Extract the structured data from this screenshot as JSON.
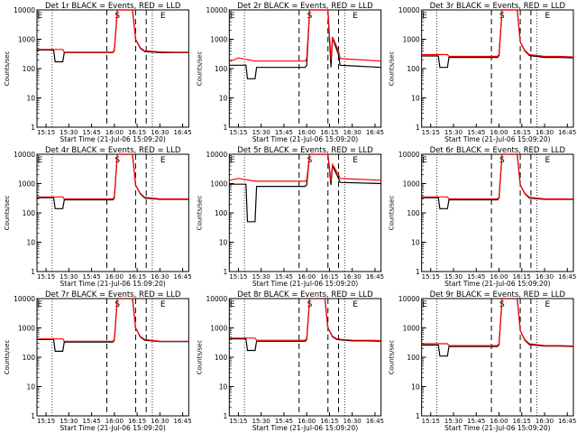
{
  "chart_data": [
    {
      "type": "line",
      "title": "Det 1r BLACK = Events, RED = LLD",
      "xlabel": "Start Time (21-Jul-06 15:09:20)",
      "ylabel": "Counts/sec",
      "y_scale": "log",
      "ylim": [
        1,
        10000
      ],
      "y_ticks": [
        "1",
        "10",
        "100",
        "1000",
        "10000"
      ],
      "x_ticks": [
        "15:15",
        "15:30",
        "15:45",
        "16:00",
        "16:15",
        "16:30",
        "16:45"
      ],
      "grid": false,
      "vline_labels": [
        "E",
        "S",
        "E"
      ],
      "series": [
        {
          "name": "BLACK",
          "color": "#000000",
          "x": [
            "15:09",
            "15:20",
            "15:21",
            "15:26",
            "15:27",
            "15:59",
            "16:00",
            "16:02",
            "16:12",
            "16:14",
            "16:17",
            "16:20",
            "16:30",
            "16:40",
            "16:49"
          ],
          "values": [
            430,
            430,
            170,
            170,
            350,
            350,
            400,
            10000,
            10000,
            1000,
            500,
            380,
            350,
            350,
            350
          ]
        },
        {
          "name": "RED",
          "color": "#ff0000",
          "x": [
            "15:09",
            "15:20",
            "15:26",
            "15:27",
            "15:59",
            "16:00",
            "16:02",
            "16:12",
            "16:14",
            "16:17",
            "16:20",
            "16:30",
            "16:40",
            "16:49"
          ],
          "values": [
            450,
            450,
            450,
            360,
            360,
            420,
            10000,
            10000,
            1000,
            520,
            400,
            370,
            360,
            360
          ]
        }
      ]
    },
    {
      "type": "line",
      "title": "Det 2r BLACK = Events, RED = LLD",
      "xlabel": "Start Time (21-Jul-06 15:09:20)",
      "ylabel": "Counts/sec",
      "y_scale": "log",
      "ylim": [
        1,
        10000
      ],
      "y_ticks": [
        "1",
        "10",
        "100",
        "1000",
        "10000"
      ],
      "x_ticks": [
        "15:15",
        "15:30",
        "15:45",
        "16:00",
        "16:15",
        "16:30",
        "16:45"
      ],
      "grid": false,
      "vline_labels": [
        "E",
        "S",
        "E"
      ],
      "series": [
        {
          "name": "BLACK",
          "color": "#000000",
          "x": [
            "15:09",
            "15:20",
            "15:21",
            "15:26",
            "15:27",
            "15:59",
            "16:00",
            "16:02",
            "16:14",
            "16:16",
            "16:17",
            "16:21",
            "16:22",
            "16:49"
          ],
          "values": [
            130,
            130,
            45,
            45,
            110,
            110,
            130,
            10000,
            10000,
            110,
            1100,
            300,
            130,
            110
          ]
        },
        {
          "name": "RED",
          "color": "#ff0000",
          "x": [
            "15:09",
            "15:15",
            "15:26",
            "15:27",
            "15:59",
            "16:00",
            "16:02",
            "16:14",
            "16:16",
            "16:17",
            "16:21",
            "16:22",
            "16:49"
          ],
          "values": [
            170,
            230,
            180,
            180,
            180,
            220,
            10000,
            10000,
            200,
            1200,
            400,
            220,
            180
          ]
        }
      ]
    },
    {
      "type": "line",
      "title": "Det 3r BLACK = Events, RED = LLD",
      "xlabel": "Start Time (21-Jul-06 15:09:20)",
      "ylabel": "Counts/sec",
      "y_scale": "log",
      "ylim": [
        1,
        10000
      ],
      "y_ticks": [
        "1",
        "10",
        "100",
        "1000",
        "10000"
      ],
      "x_ticks": [
        "15:15",
        "15:30",
        "15:45",
        "16:00",
        "16:15",
        "16:30",
        "16:45"
      ],
      "grid": false,
      "vline_labels": [
        "E",
        "S",
        "E"
      ],
      "series": [
        {
          "name": "BLACK",
          "color": "#000000",
          "x": [
            "15:09",
            "15:20",
            "15:21",
            "15:26",
            "15:27",
            "15:59",
            "16:00",
            "16:02",
            "16:12",
            "16:14",
            "16:17",
            "16:20",
            "16:30",
            "16:40",
            "16:49"
          ],
          "values": [
            270,
            270,
            110,
            110,
            240,
            240,
            280,
            10000,
            10000,
            800,
            400,
            280,
            240,
            240,
            230
          ]
        },
        {
          "name": "RED",
          "color": "#ff0000",
          "x": [
            "15:09",
            "15:20",
            "15:26",
            "15:27",
            "15:59",
            "16:00",
            "16:02",
            "16:12",
            "16:14",
            "16:17",
            "16:20",
            "16:30",
            "16:40",
            "16:49"
          ],
          "values": [
            300,
            300,
            300,
            260,
            260,
            300,
            10000,
            10000,
            800,
            420,
            300,
            260,
            260,
            250
          ]
        }
      ]
    },
    {
      "type": "line",
      "title": "Det 4r BLACK = Events, RED = LLD",
      "xlabel": "Start Time (21-Jul-06 15:09:20)",
      "ylabel": "Counts/sec",
      "y_scale": "log",
      "ylim": [
        1,
        10000
      ],
      "y_ticks": [
        "1",
        "10",
        "100",
        "1000",
        "10000"
      ],
      "x_ticks": [
        "15:15",
        "15:30",
        "15:45",
        "16:00",
        "16:15",
        "16:30",
        "16:45"
      ],
      "grid": false,
      "vline_labels": [
        "E",
        "S",
        "E"
      ],
      "series": [
        {
          "name": "BLACK",
          "color": "#000000",
          "x": [
            "15:09",
            "15:20",
            "15:21",
            "15:26",
            "15:27",
            "15:59",
            "16:00",
            "16:02",
            "16:12",
            "16:14",
            "16:17",
            "16:20",
            "16:30",
            "16:40",
            "16:49"
          ],
          "values": [
            330,
            330,
            140,
            140,
            280,
            280,
            320,
            10000,
            10000,
            900,
            450,
            320,
            290,
            290,
            290
          ]
        },
        {
          "name": "RED",
          "color": "#ff0000",
          "x": [
            "15:09",
            "15:20",
            "15:26",
            "15:27",
            "15:59",
            "16:00",
            "16:02",
            "16:12",
            "16:14",
            "16:17",
            "16:20",
            "16:30",
            "16:40",
            "16:49"
          ],
          "values": [
            350,
            350,
            350,
            300,
            300,
            340,
            10000,
            10000,
            900,
            470,
            340,
            300,
            300,
            300
          ]
        }
      ]
    },
    {
      "type": "line",
      "title": "Det 5r BLACK = Events, RED = LLD",
      "xlabel": "Start Time (21-Jul-06 15:09:20)",
      "ylabel": "Counts/sec",
      "y_scale": "log",
      "ylim": [
        1,
        10000
      ],
      "y_ticks": [
        "1",
        "10",
        "100",
        "1000",
        "10000"
      ],
      "x_ticks": [
        "15:15",
        "15:30",
        "15:45",
        "16:00",
        "16:15",
        "16:30",
        "16:45"
      ],
      "grid": false,
      "vline_labels": [
        "E",
        "S",
        "E"
      ],
      "series": [
        {
          "name": "BLACK",
          "color": "#000000",
          "x": [
            "15:09",
            "15:20",
            "15:21",
            "15:26",
            "15:27",
            "15:59",
            "16:00",
            "16:02",
            "16:14",
            "16:16",
            "16:17",
            "16:21",
            "16:22",
            "16:49"
          ],
          "values": [
            950,
            950,
            50,
            50,
            800,
            800,
            900,
            10000,
            10000,
            900,
            4000,
            1500,
            1100,
            1000
          ]
        },
        {
          "name": "RED",
          "color": "#ff0000",
          "x": [
            "15:09",
            "15:15",
            "15:26",
            "15:27",
            "15:59",
            "16:00",
            "16:02",
            "16:14",
            "16:16",
            "16:17",
            "16:21",
            "16:22",
            "16:49"
          ],
          "values": [
            1300,
            1500,
            1200,
            1200,
            1200,
            1300,
            10000,
            10000,
            1200,
            4500,
            2000,
            1500,
            1300
          ]
        }
      ]
    },
    {
      "type": "line",
      "title": "Det 6r BLACK = Events, RED = LLD",
      "xlabel": "Start Time (21-Jul-06 15:09:20)",
      "ylabel": "Counts/sec",
      "y_scale": "log",
      "ylim": [
        1,
        10000
      ],
      "y_ticks": [
        "1",
        "10",
        "100",
        "1000",
        "10000"
      ],
      "x_ticks": [
        "15:15",
        "15:30",
        "15:45",
        "16:00",
        "16:15",
        "16:30",
        "16:45"
      ],
      "grid": false,
      "vline_labels": [
        "E",
        "S",
        "E"
      ],
      "series": [
        {
          "name": "BLACK",
          "color": "#000000",
          "x": [
            "15:09",
            "15:20",
            "15:21",
            "15:26",
            "15:27",
            "15:59",
            "16:00",
            "16:02",
            "16:12",
            "16:14",
            "16:17",
            "16:20",
            "16:30",
            "16:40",
            "16:49"
          ],
          "values": [
            330,
            330,
            140,
            140,
            280,
            280,
            320,
            10000,
            10000,
            900,
            450,
            320,
            290,
            290,
            290
          ]
        },
        {
          "name": "RED",
          "color": "#ff0000",
          "x": [
            "15:09",
            "15:20",
            "15:26",
            "15:27",
            "15:59",
            "16:00",
            "16:02",
            "16:12",
            "16:14",
            "16:17",
            "16:20",
            "16:30",
            "16:40",
            "16:49"
          ],
          "values": [
            350,
            350,
            350,
            300,
            300,
            340,
            10000,
            10000,
            900,
            470,
            340,
            300,
            300,
            300
          ]
        }
      ]
    },
    {
      "type": "line",
      "title": "Det 7r BLACK = Events, RED = LLD",
      "xlabel": "Start Time (21-Jul-06 15:09:20)",
      "ylabel": "Counts/sec",
      "y_scale": "log",
      "ylim": [
        1,
        10000
      ],
      "y_ticks": [
        "1",
        "10",
        "100",
        "1000",
        "10000"
      ],
      "x_ticks": [
        "15:15",
        "15:30",
        "15:45",
        "16:00",
        "16:15",
        "16:30",
        "16:45"
      ],
      "grid": false,
      "vline_labels": [
        "E",
        "S",
        "E"
      ],
      "series": [
        {
          "name": "BLACK",
          "color": "#000000",
          "x": [
            "15:09",
            "15:20",
            "15:21",
            "15:26",
            "15:27",
            "15:59",
            "16:00",
            "16:02",
            "16:12",
            "16:14",
            "16:17",
            "16:20",
            "16:30",
            "16:40",
            "16:49"
          ],
          "values": [
            400,
            400,
            160,
            160,
            330,
            330,
            380,
            10000,
            10000,
            1000,
            500,
            380,
            340,
            340,
            340
          ]
        },
        {
          "name": "RED",
          "color": "#ff0000",
          "x": [
            "15:09",
            "15:20",
            "15:26",
            "15:27",
            "15:59",
            "16:00",
            "16:02",
            "16:12",
            "16:14",
            "16:17",
            "16:20",
            "16:30",
            "16:40",
            "16:49"
          ],
          "values": [
            420,
            420,
            420,
            350,
            350,
            400,
            10000,
            10000,
            1000,
            520,
            400,
            350,
            350,
            350
          ]
        }
      ]
    },
    {
      "type": "line",
      "title": "Det 8r BLACK = Events, RED = LLD",
      "xlabel": "Start Time (21-Jul-06 15:09:20)",
      "ylabel": "Counts/sec",
      "y_scale": "log",
      "ylim": [
        1,
        10000
      ],
      "y_ticks": [
        "1",
        "10",
        "100",
        "1000",
        "10000"
      ],
      "x_ticks": [
        "15:15",
        "15:30",
        "15:45",
        "16:00",
        "16:15",
        "16:30",
        "16:45"
      ],
      "grid": false,
      "vline_labels": [
        "E",
        "S",
        "E"
      ],
      "series": [
        {
          "name": "BLACK",
          "color": "#000000",
          "x": [
            "15:09",
            "15:20",
            "15:21",
            "15:26",
            "15:27",
            "15:59",
            "16:00",
            "16:02",
            "16:12",
            "16:14",
            "16:17",
            "16:20",
            "16:30",
            "16:40",
            "16:49"
          ],
          "values": [
            420,
            420,
            170,
            170,
            350,
            350,
            400,
            10000,
            10000,
            1000,
            500,
            400,
            360,
            360,
            350
          ]
        },
        {
          "name": "RED",
          "color": "#ff0000",
          "x": [
            "15:09",
            "15:20",
            "15:26",
            "15:27",
            "15:59",
            "16:00",
            "16:02",
            "16:12",
            "16:14",
            "16:17",
            "16:20",
            "16:30",
            "16:40",
            "16:49"
          ],
          "values": [
            450,
            450,
            450,
            380,
            380,
            430,
            10000,
            10000,
            1000,
            520,
            420,
            380,
            380,
            370
          ]
        }
      ]
    },
    {
      "type": "line",
      "title": "Det 9r BLACK = Events, RED = LLD",
      "xlabel": "Start Time (21-Jul-06 15:09:20)",
      "ylabel": "Counts/sec",
      "y_scale": "log",
      "ylim": [
        1,
        10000
      ],
      "y_ticks": [
        "1",
        "10",
        "100",
        "1000",
        "10000"
      ],
      "x_ticks": [
        "15:15",
        "15:30",
        "15:45",
        "16:00",
        "16:15",
        "16:30",
        "16:45"
      ],
      "grid": false,
      "vline_labels": [
        "E",
        "S",
        "E"
      ],
      "series": [
        {
          "name": "BLACK",
          "color": "#000000",
          "x": [
            "15:09",
            "15:20",
            "15:21",
            "15:26",
            "15:27",
            "15:59",
            "16:00",
            "16:02",
            "16:12",
            "16:14",
            "16:17",
            "16:20",
            "16:30",
            "16:40",
            "16:49"
          ],
          "values": [
            260,
            260,
            110,
            110,
            230,
            230,
            270,
            10000,
            10000,
            800,
            380,
            270,
            240,
            240,
            230
          ]
        },
        {
          "name": "RED",
          "color": "#ff0000",
          "x": [
            "15:09",
            "15:20",
            "15:26",
            "15:27",
            "15:59",
            "16:00",
            "16:02",
            "16:12",
            "16:14",
            "16:17",
            "16:20",
            "16:30",
            "16:40",
            "16:49"
          ],
          "values": [
            290,
            290,
            290,
            250,
            250,
            290,
            10000,
            10000,
            800,
            400,
            290,
            250,
            250,
            240
          ]
        }
      ]
    }
  ]
}
